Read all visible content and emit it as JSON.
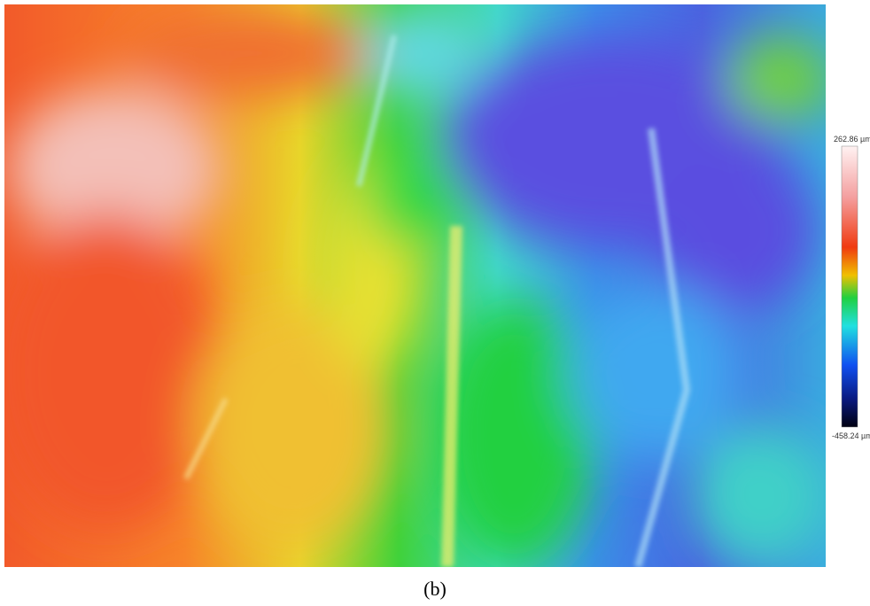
{
  "figure": {
    "panel_label": "(b)",
    "colorbar": {
      "max_label": "262.86 µm",
      "min_label": "-458.24 µm"
    }
  }
}
